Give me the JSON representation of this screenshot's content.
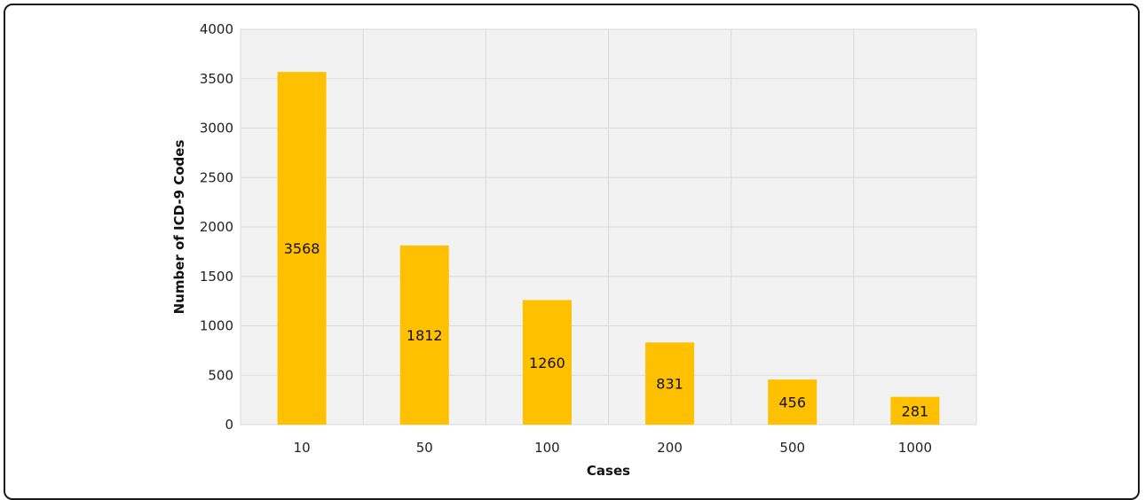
{
  "chart_data": {
    "type": "bar",
    "title": "",
    "xlabel": "Cases",
    "ylabel": "Number of ICD-9 Codes",
    "categories": [
      "10",
      "50",
      "100",
      "200",
      "500",
      "1000"
    ],
    "values": [
      3568,
      1812,
      1260,
      831,
      456,
      281
    ],
    "data_labels": [
      "3568",
      "1812",
      "1260",
      "831",
      "456",
      "281"
    ],
    "ylim": [
      0,
      4000
    ],
    "yticks": [
      "0",
      "500",
      "1000",
      "1500",
      "2000",
      "2500",
      "3000",
      "3500",
      "4000"
    ],
    "grid": true,
    "bar_color": "#FFC000",
    "plot_background": "#F2F2F2",
    "grid_color": "#D9D9D9"
  }
}
